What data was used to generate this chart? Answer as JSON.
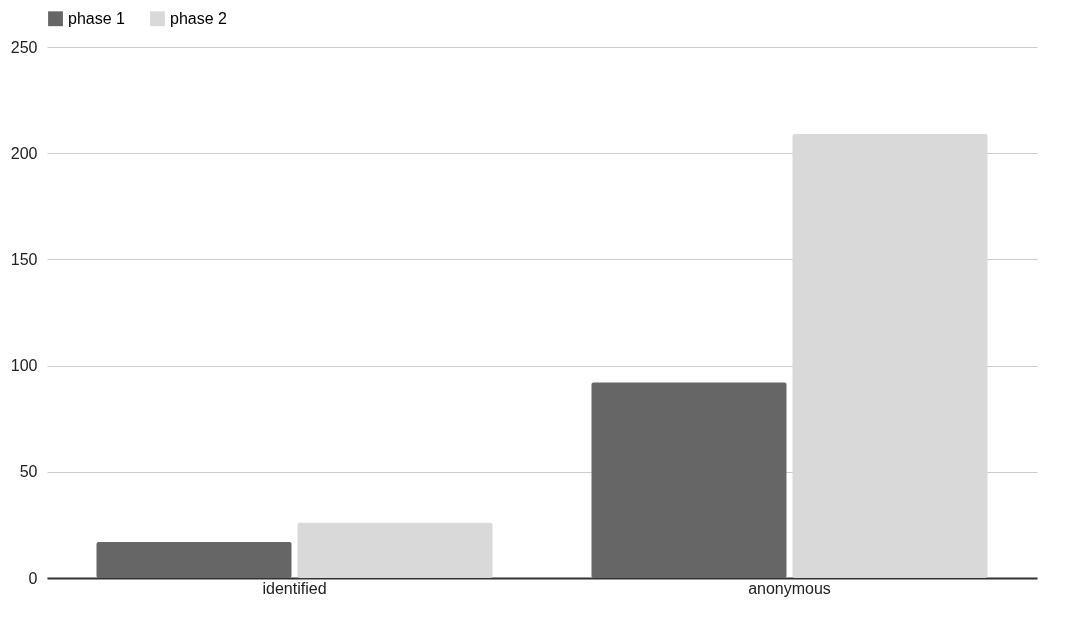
{
  "chart_data": {
    "type": "bar",
    "categories": [
      "identified",
      "anonymous"
    ],
    "series": [
      {
        "name": "phase 1",
        "color": "#666666",
        "values": [
          17,
          92
        ]
      },
      {
        "name": "phase 2",
        "color": "#d9d9d9",
        "values": [
          26,
          209
        ]
      }
    ],
    "ylim": [
      0,
      250
    ],
    "yticks": [
      0,
      50,
      100,
      150,
      200,
      250
    ],
    "grid": "y",
    "legend": "top"
  }
}
